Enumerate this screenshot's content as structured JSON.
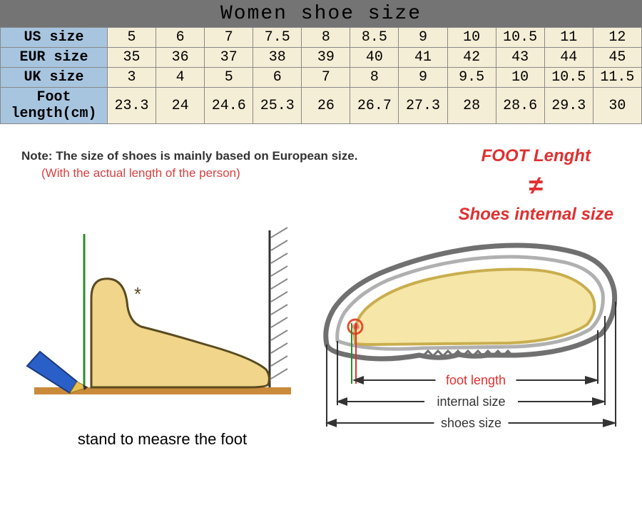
{
  "title": "Women shoe size",
  "title_bg": "#747474",
  "title_color": "#000000",
  "table": {
    "label_bg": "#a8c5e0",
    "cell_bg": "#f5eed6",
    "border_color": "#999999",
    "rows": [
      {
        "label": "US size",
        "values": [
          "5",
          "6",
          "7",
          "7.5",
          "8",
          "8.5",
          "9",
          "10",
          "10.5",
          "11",
          "12"
        ]
      },
      {
        "label": "EUR size",
        "values": [
          "35",
          "36",
          "37",
          "38",
          "39",
          "40",
          "41",
          "42",
          "43",
          "44",
          "45"
        ]
      },
      {
        "label": "UK size",
        "values": [
          "3",
          "4",
          "5",
          "6",
          "7",
          "8",
          "9",
          "9.5",
          "10",
          "10.5",
          "11.5"
        ]
      },
      {
        "label": "Foot length(cm)",
        "values": [
          "23.3",
          "24",
          "24.6",
          "25.3",
          "26",
          "26.7",
          "27.3",
          "28",
          "28.6",
          "29.3",
          "30"
        ]
      }
    ]
  },
  "note": {
    "prefix": "Note:",
    "main": "The size of shoes is mainly based on European size.",
    "sub": "(With the actual length of the person)",
    "main_color": "#333333",
    "sub_color": "#d94040"
  },
  "foot_block": {
    "line1": "FOOT Lenght",
    "neq": "≠",
    "line2": "Shoes internal size",
    "color": "#e03030"
  },
  "left_diagram": {
    "foot_fill": "#f0d58a",
    "foot_stroke": "#5a4a1f",
    "ground_color": "#c98a3a",
    "pencil_body": "#2a5fc7",
    "pencil_tip": "#e8c050",
    "measure_line": "#2b8e2b",
    "wall_hatch": "#888888",
    "caption": "stand to measre the foot"
  },
  "right_diagram": {
    "shoe_outer": "#707070",
    "shoe_inner": "#b0b0b0",
    "foot_fill": "#f5e29a",
    "foot_stroke": "#c0a030",
    "toe_highlight": "#e05030",
    "arrow_color": "#333333",
    "label_foot": "foot length",
    "label_internal": "internal size",
    "label_shoes": "shoes size",
    "label_color_foot": "#e03030",
    "label_color_rest": "#333333",
    "green_line": "#2b8e2b",
    "red_line": "#e03030"
  }
}
